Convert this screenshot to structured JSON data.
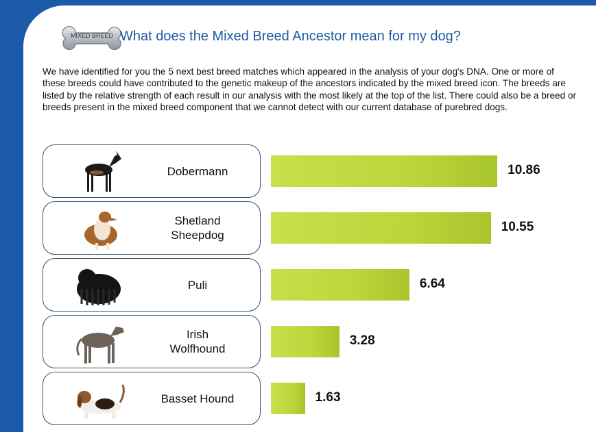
{
  "header": {
    "badge": "MIXED BREED",
    "title": "What does the Mixed Breed Ancestor mean for my dog?"
  },
  "intro": "We have identified for you the 5 next best breed matches which appeared in the analysis of your dog's DNA. One or more of these breeds could have contributed to the genetic makeup of the ancestors indicated by the mixed breed icon. The breeds are listed by the relative strength of each result in our analysis with the most likely at the top of the list. There could also be a breed or breeds present in the mixed breed component that we cannot detect with our current database of purebred dogs.",
  "chart_data": {
    "type": "bar",
    "orientation": "horizontal",
    "categories": [
      "Dobermann",
      "Shetland Sheepdog",
      "Puli",
      "Irish Wolfhound",
      "Basset Hound"
    ],
    "values": [
      10.86,
      10.55,
      6.64,
      3.28,
      1.63
    ],
    "value_labels": [
      "10.86",
      "10.55",
      "6.64",
      "3.28",
      "1.63"
    ],
    "bar_color": "#c3da3f",
    "icons": [
      "dobermann-photo-icon",
      "shetland-sheepdog-photo-icon",
      "puli-photo-icon",
      "irish-wolfhound-photo-icon",
      "basset-hound-photo-icon"
    ]
  }
}
